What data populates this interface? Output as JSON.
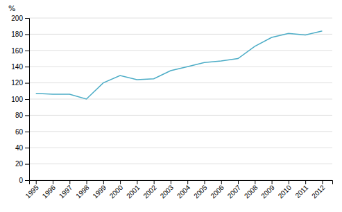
{
  "chart_data": {
    "type": "line",
    "x": [
      1995,
      1996,
      1997,
      1998,
      1999,
      2000,
      2001,
      2002,
      2003,
      2004,
      2005,
      2006,
      2007,
      2008,
      2009,
      2010,
      2011,
      2012
    ],
    "values": [
      107,
      106,
      106,
      100,
      120,
      129,
      124,
      125,
      135,
      140,
      145,
      147,
      150,
      165,
      176,
      181,
      179,
      184
    ],
    "color": "#4bacc6",
    "xlim": [
      1994.6,
      2012.6
    ],
    "xticks": [
      1995,
      1996,
      1997,
      1998,
      1999,
      2000,
      2001,
      2002,
      2003,
      2004,
      2005,
      2006,
      2007,
      2008,
      2009,
      2010,
      2011,
      2012
    ],
    "ylim": [
      0,
      200
    ],
    "yticks": [
      0,
      20,
      40,
      60,
      80,
      100,
      120,
      140,
      160,
      180,
      200
    ],
    "grid": "y",
    "ylabel": "%"
  }
}
